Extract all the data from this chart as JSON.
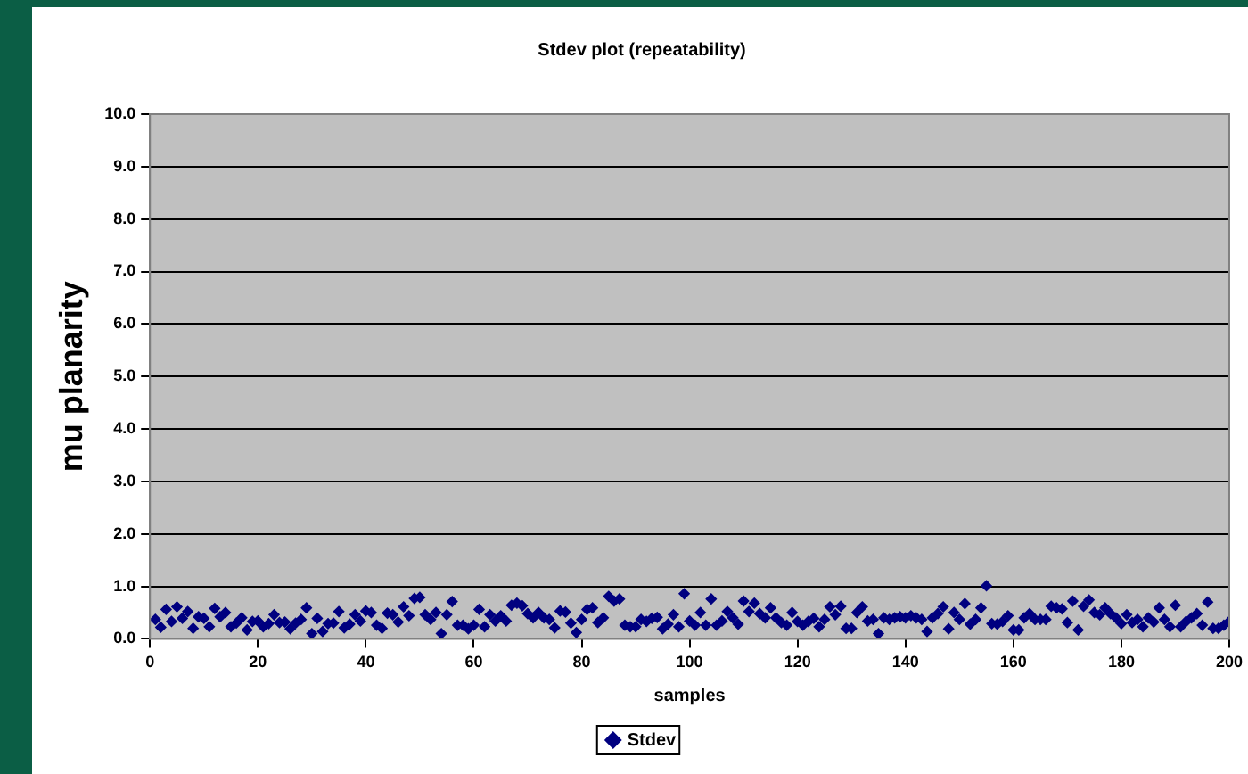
{
  "chart_data": {
    "type": "scatter",
    "title": "Stdev plot (repeatability)",
    "xlabel": "samples",
    "ylabel": "mu planarity",
    "x": [
      1,
      2,
      3,
      4,
      5,
      6,
      7,
      8,
      9,
      10,
      11,
      12,
      13,
      14,
      15,
      16,
      17,
      18,
      19,
      20,
      21,
      22,
      23,
      24,
      25,
      26,
      27,
      28,
      29,
      30,
      31,
      32,
      33,
      34,
      35,
      36,
      37,
      38,
      39,
      40,
      41,
      42,
      43,
      44,
      45,
      46,
      47,
      48,
      49,
      50,
      51,
      52,
      53,
      54,
      55,
      56,
      57,
      58,
      59,
      60,
      61,
      62,
      63,
      64,
      65,
      66,
      67,
      68,
      69,
      70,
      71,
      72,
      73,
      74,
      75,
      76,
      77,
      78,
      79,
      80,
      81,
      82,
      83,
      84,
      85,
      86,
      87,
      88,
      89,
      90,
      91,
      92,
      93,
      94,
      95,
      96,
      97,
      98,
      99,
      100,
      101,
      102,
      103,
      104,
      105,
      106,
      107,
      108,
      109,
      110,
      111,
      112,
      113,
      114,
      115,
      116,
      117,
      118,
      119,
      120,
      121,
      122,
      123,
      124,
      125,
      126,
      127,
      128,
      129,
      130,
      131,
      132,
      133,
      134,
      135,
      136,
      137,
      138,
      139,
      140,
      141,
      142,
      143,
      144,
      145,
      146,
      147,
      148,
      149,
      150,
      151,
      152,
      153,
      154,
      155,
      156,
      157,
      158,
      159,
      160,
      161,
      162,
      163,
      164,
      165,
      166,
      167,
      168,
      169,
      170,
      171,
      172,
      173,
      174,
      175,
      176,
      177,
      178,
      179,
      180,
      181,
      182,
      183,
      184,
      185,
      186,
      187,
      188,
      189,
      190,
      191,
      192,
      193,
      194,
      195,
      196,
      197,
      198,
      199,
      200
    ],
    "series": [
      {
        "name": "Stdev",
        "color": "#000080",
        "values": [
          0.37,
          0.22,
          0.56,
          0.33,
          0.61,
          0.39,
          0.52,
          0.2,
          0.42,
          0.39,
          0.23,
          0.58,
          0.42,
          0.5,
          0.23,
          0.3,
          0.4,
          0.17,
          0.33,
          0.34,
          0.23,
          0.29,
          0.46,
          0.31,
          0.32,
          0.19,
          0.3,
          0.37,
          0.59,
          0.1,
          0.39,
          0.14,
          0.29,
          0.3,
          0.52,
          0.21,
          0.28,
          0.46,
          0.34,
          0.53,
          0.5,
          0.26,
          0.2,
          0.49,
          0.46,
          0.32,
          0.61,
          0.44,
          0.77,
          0.79,
          0.46,
          0.37,
          0.5,
          0.1,
          0.46,
          0.71,
          0.26,
          0.26,
          0.19,
          0.26,
          0.56,
          0.23,
          0.46,
          0.34,
          0.44,
          0.34,
          0.64,
          0.68,
          0.63,
          0.48,
          0.4,
          0.5,
          0.4,
          0.37,
          0.21,
          0.53,
          0.51,
          0.3,
          0.12,
          0.37,
          0.56,
          0.59,
          0.31,
          0.4,
          0.81,
          0.72,
          0.76,
          0.26,
          0.23,
          0.23,
          0.37,
          0.33,
          0.39,
          0.41,
          0.19,
          0.28,
          0.46,
          0.23,
          0.86,
          0.34,
          0.26,
          0.5,
          0.26,
          0.76,
          0.26,
          0.34,
          0.52,
          0.4,
          0.28,
          0.72,
          0.52,
          0.68,
          0.48,
          0.4,
          0.59,
          0.4,
          0.31,
          0.26,
          0.5,
          0.33,
          0.26,
          0.33,
          0.39,
          0.23,
          0.37,
          0.61,
          0.46,
          0.62,
          0.2,
          0.2,
          0.5,
          0.61,
          0.34,
          0.37,
          0.1,
          0.4,
          0.37,
          0.4,
          0.42,
          0.4,
          0.44,
          0.4,
          0.37,
          0.14,
          0.4,
          0.48,
          0.61,
          0.19,
          0.5,
          0.37,
          0.67,
          0.28,
          0.37,
          0.59,
          1.01,
          0.29,
          0.28,
          0.33,
          0.44,
          0.17,
          0.17,
          0.4,
          0.48,
          0.37,
          0.37,
          0.37,
          0.62,
          0.59,
          0.57,
          0.31,
          0.72,
          0.17,
          0.62,
          0.74,
          0.5,
          0.46,
          0.59,
          0.48,
          0.4,
          0.29,
          0.46,
          0.31,
          0.37,
          0.23,
          0.4,
          0.32,
          0.59,
          0.37,
          0.23,
          0.64,
          0.23,
          0.33,
          0.4,
          0.48,
          0.26,
          0.7,
          0.2,
          0.2,
          0.26,
          0.33
        ]
      }
    ],
    "xlim": [
      0,
      200
    ],
    "xticks": [
      0,
      20,
      40,
      60,
      80,
      100,
      120,
      140,
      160,
      180,
      200
    ],
    "ylim": [
      0,
      10
    ],
    "yticks": [
      {
        "value": 0,
        "label": "0.0"
      },
      {
        "value": 1,
        "label": "1.0"
      },
      {
        "value": 2,
        "label": "2.0"
      },
      {
        "value": 3,
        "label": "3.0"
      },
      {
        "value": 4,
        "label": "4.0"
      },
      {
        "value": 5,
        "label": "5.0"
      },
      {
        "value": 6,
        "label": "6.0"
      },
      {
        "value": 7,
        "label": "7.0"
      },
      {
        "value": 8,
        "label": "8.0"
      },
      {
        "value": 9,
        "label": "9.0"
      },
      {
        "value": 10,
        "label": "10.0"
      }
    ],
    "grid": "y",
    "legend": "bottom",
    "marker": "diamond"
  }
}
